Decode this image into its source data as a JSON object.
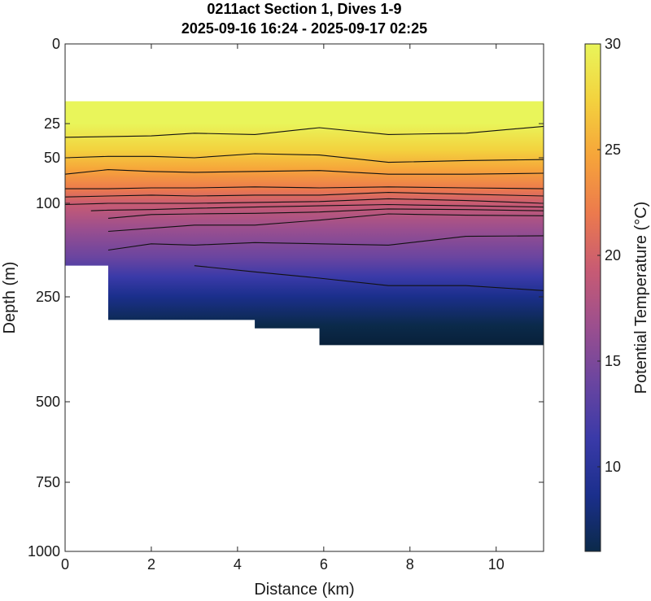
{
  "chart_data": {
    "type": "heatmap",
    "title": "0211act Section 1, Dives 1-9",
    "subtitle": "2025-09-16 16:24 - 2025-09-17 02:25",
    "xlabel": "Distance (km)",
    "ylabel": "Depth (m)",
    "colorbar_label": "Potential Temperature (°C)",
    "xlim": [
      0,
      11.1
    ],
    "ylim": [
      0,
      1000
    ],
    "y_reversed": true,
    "x_ticks": [
      "0",
      "2",
      "4",
      "6",
      "8",
      "10"
    ],
    "y_ticks": [
      "0",
      "25",
      "50",
      "100",
      "250",
      "500",
      "750",
      "1000"
    ],
    "colorbar_range": [
      6,
      30
    ],
    "colorbar_ticks": [
      "10",
      "15",
      "20",
      "25",
      "30"
    ],
    "colormap": [
      "#0b2a4a",
      "#1b2f8c",
      "#3a3aa8",
      "#6a45a0",
      "#9c4f8e",
      "#c85b73",
      "#ec7a4d",
      "#f6a43a",
      "#f3d23e",
      "#e9f55a"
    ],
    "data_top_depth": 18,
    "profiles": [
      {
        "x": 0,
        "max_depth": 105
      },
      {
        "x": 1,
        "max_depth": 200
      },
      {
        "x": 4.4,
        "max_depth": 305
      },
      {
        "x": 5.9,
        "max_depth": 325
      },
      {
        "x": 11.1,
        "max_depth": 365
      }
    ],
    "contours": [
      {
        "x": [
          0,
          2,
          3,
          4.4,
          5.9,
          7.5,
          9.3,
          11.1
        ],
        "depth": [
          35,
          34,
          32,
          33,
          28,
          33,
          32,
          27
        ]
      },
      {
        "x": [
          0,
          1,
          2,
          3,
          4.4,
          5.9,
          7.5,
          9.3,
          11.1
        ],
        "depth": [
          50,
          49,
          49,
          50,
          47,
          48,
          55,
          53,
          52
        ]
      },
      {
        "x": [
          0,
          1,
          2,
          3,
          4.4,
          5.9,
          7.5,
          9.3,
          11.1
        ],
        "depth": [
          68,
          63,
          65,
          66,
          65,
          64,
          68,
          68,
          67
        ]
      },
      {
        "x": [
          0,
          1,
          2,
          3,
          4.4,
          5.9,
          7.5,
          9.3,
          11.1
        ],
        "depth": [
          84,
          84,
          83,
          83,
          82,
          83,
          82,
          83,
          84
        ]
      },
      {
        "x": [
          0,
          1,
          2,
          3,
          4.4,
          5.9,
          7.5,
          9.3,
          11.1
        ],
        "depth": [
          93,
          92,
          91,
          92,
          91,
          91,
          88,
          90,
          92
        ]
      },
      {
        "x": [
          0,
          1,
          2,
          3,
          4.4,
          5.9,
          7.5,
          9.3,
          11.1
        ],
        "depth": [
          102,
          100,
          100,
          100,
          99,
          98,
          95,
          97,
          100
        ]
      },
      {
        "x": [
          0.6,
          1,
          2,
          3,
          4.4,
          5.9,
          7.5,
          9.3,
          11.1
        ],
        "depth": [
          112,
          111,
          110,
          108,
          106,
          104,
          102,
          104,
          106
        ]
      },
      {
        "x": [
          1,
          2,
          3,
          4.4,
          5.9,
          7.5,
          9.3,
          11.1
        ],
        "depth": [
          124,
          118,
          117,
          116,
          114,
          109,
          110,
          112
        ]
      },
      {
        "x": [
          1,
          2,
          3,
          4.4,
          5.9,
          7.5,
          9.3,
          11.1
        ],
        "depth": [
          145,
          140,
          135,
          135,
          127,
          117,
          119,
          120
        ]
      },
      {
        "x": [
          1,
          2,
          3,
          4.4,
          5.9,
          7.5,
          9.3,
          11.1
        ],
        "depth": [
          175,
          165,
          167,
          163,
          165,
          167,
          153,
          152
        ]
      },
      {
        "x": [
          3,
          4.4,
          5.9,
          7.5,
          9.3,
          11.1
        ],
        "depth": [
          200,
          210,
          220,
          232,
          232,
          240
        ]
      }
    ]
  }
}
